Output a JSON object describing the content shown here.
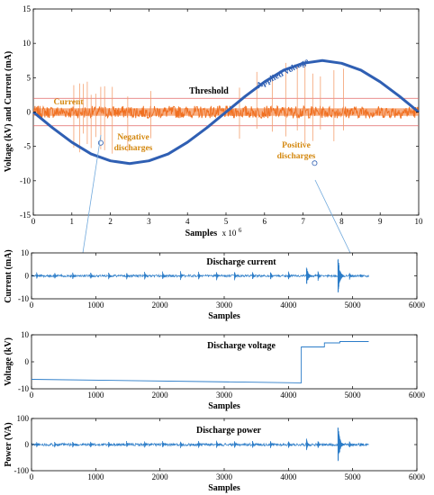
{
  "chart_data": [
    {
      "type": "line",
      "xlabel": "Samples",
      "x_multiplier": "x 10",
      "x_multiplier_exp": "6",
      "ylabel": "Voltage (kV) and Current (mA)",
      "xlim": [
        0,
        10
      ],
      "ylim": [
        -15,
        15
      ],
      "x_ticks": [
        "0",
        "1",
        "2",
        "3",
        "4",
        "5",
        "6",
        "7",
        "8",
        "9",
        "10"
      ],
      "y_ticks": [
        "15",
        "10",
        "5",
        "0",
        "-5",
        "-10",
        "-15"
      ],
      "threshold": {
        "label": "Threshold",
        "upper": 2,
        "lower": -2,
        "color": "#e06666"
      },
      "series": [
        {
          "name": "Applied voltage",
          "color": "#2f5fb3",
          "x": [
            0,
            0.5,
            1.0,
            1.5,
            2.0,
            2.5,
            3.0,
            3.5,
            4.0,
            4.5,
            5.0,
            5.5,
            6.0,
            6.5,
            7.0,
            7.5,
            8.0,
            8.5,
            9.0,
            9.5,
            10.0
          ],
          "y": [
            0,
            -2.3,
            -4.4,
            -6.1,
            -7.1,
            -7.5,
            -7.1,
            -6.1,
            -4.4,
            -2.3,
            0,
            2.3,
            4.4,
            6.1,
            7.1,
            7.5,
            7.1,
            6.1,
            4.4,
            2.3,
            0
          ]
        },
        {
          "name": "Current",
          "color": "#f07020",
          "noise_band": [
            -0.9,
            0.9
          ]
        }
      ],
      "negative_spikes_x": [
        1.05,
        1.2,
        1.3,
        1.4,
        1.5,
        1.62,
        1.75,
        1.85,
        2.05,
        2.45,
        3.05
      ],
      "positive_spikes_x": [
        5.35,
        5.8,
        6.2,
        6.55,
        6.85,
        7.05,
        7.25,
        7.45,
        7.8,
        8.05
      ],
      "annotations": [
        {
          "text": "Negative",
          "color": "#d4880f"
        },
        {
          "text": "discharges",
          "color": "#d4880f"
        },
        {
          "text": "Positive",
          "color": "#d4880f"
        },
        {
          "text": "discharges",
          "color": "#d4880f"
        }
      ],
      "zoom_markers_x": [
        1.75,
        7.3
      ]
    },
    {
      "type": "line",
      "title": "Discharge current",
      "xlabel": "Samples",
      "ylabel": "Current (mA)",
      "xlim": [
        0,
        6000
      ],
      "ylim": [
        -10,
        10
      ],
      "x_ticks": [
        "0",
        "1000",
        "2000",
        "3000",
        "4000",
        "5000",
        "6000"
      ],
      "y_ticks": [
        "10",
        "0",
        "-10"
      ],
      "color": "#2b7cc8",
      "signal_end": 5250,
      "pulses": [
        {
          "x": 80,
          "amp": 1.6
        },
        {
          "x": 360,
          "amp": 1.7
        },
        {
          "x": 640,
          "amp": 1.7
        },
        {
          "x": 920,
          "amp": 1.8
        },
        {
          "x": 1200,
          "amp": 1.9
        },
        {
          "x": 1480,
          "amp": 1.9
        },
        {
          "x": 1760,
          "amp": 2.0
        },
        {
          "x": 2040,
          "amp": 2.0
        },
        {
          "x": 2320,
          "amp": 2.1
        },
        {
          "x": 2600,
          "amp": 2.1
        },
        {
          "x": 2880,
          "amp": 2.2
        },
        {
          "x": 3160,
          "amp": 2.2
        },
        {
          "x": 3440,
          "amp": 2.2
        },
        {
          "x": 3720,
          "amp": 2.3
        },
        {
          "x": 4000,
          "amp": 2.3
        },
        {
          "x": 4280,
          "amp": 4.5
        },
        {
          "x": 4460,
          "amp": 2.6
        },
        {
          "x": 4770,
          "amp": 9.5
        },
        {
          "x": 4950,
          "amp": 1.8
        },
        {
          "x": 5120,
          "amp": 0.9
        }
      ]
    },
    {
      "type": "line",
      "title": "Discharge voltage",
      "xlabel": "Samples",
      "ylabel": "Voltage (kV)",
      "xlim": [
        0,
        6000
      ],
      "ylim": [
        -10,
        10
      ],
      "x_ticks": [
        "0",
        "1000",
        "2000",
        "3000",
        "4000",
        "5000",
        "6000"
      ],
      "y_ticks": [
        "10",
        "0",
        "-10"
      ],
      "color": "#2b7cc8",
      "x": [
        0,
        4200,
        4200,
        4560,
        4560,
        4800,
        4800,
        5250
      ],
      "y": [
        -6.5,
        -7.8,
        5.5,
        5.5,
        7.0,
        7.0,
        7.5,
        7.5
      ]
    },
    {
      "type": "line",
      "title": "Discharge power",
      "xlabel": "Samples",
      "ylabel": "Power (VA)",
      "xlim": [
        0,
        6000
      ],
      "ylim": [
        -100,
        100
      ],
      "x_ticks": [
        "0",
        "1000",
        "2000",
        "3000",
        "4000",
        "5000",
        "6000"
      ],
      "y_ticks": [
        "100",
        "0",
        "-100"
      ],
      "color": "#2b7cc8",
      "signal_end": 5250,
      "pulses": [
        {
          "x": 80,
          "amp": 12
        },
        {
          "x": 360,
          "amp": 12
        },
        {
          "x": 640,
          "amp": 13
        },
        {
          "x": 920,
          "amp": 13
        },
        {
          "x": 1200,
          "amp": 14
        },
        {
          "x": 1480,
          "amp": 14
        },
        {
          "x": 1760,
          "amp": 14
        },
        {
          "x": 2040,
          "amp": 15
        },
        {
          "x": 2320,
          "amp": 15
        },
        {
          "x": 2600,
          "amp": 15
        },
        {
          "x": 2880,
          "amp": 15
        },
        {
          "x": 3160,
          "amp": 16
        },
        {
          "x": 3440,
          "amp": 16
        },
        {
          "x": 3720,
          "amp": 16
        },
        {
          "x": 4000,
          "amp": 17
        },
        {
          "x": 4280,
          "amp": 30
        },
        {
          "x": 4460,
          "amp": 20
        },
        {
          "x": 4770,
          "amp": 85
        },
        {
          "x": 4950,
          "amp": 15
        },
        {
          "x": 5120,
          "amp": 8
        }
      ]
    }
  ]
}
